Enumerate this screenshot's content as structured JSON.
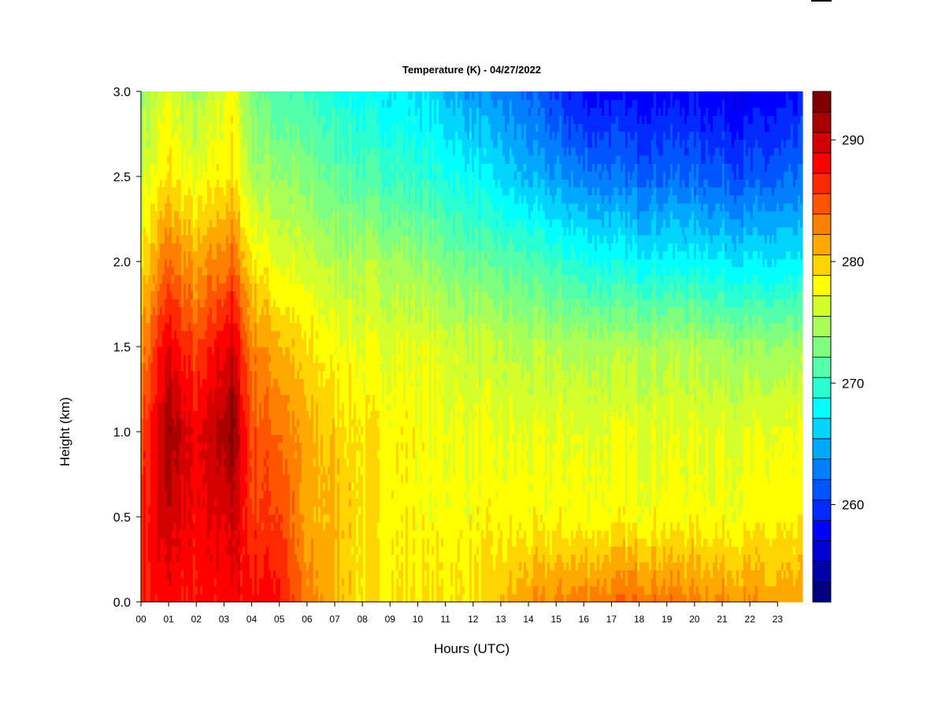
{
  "chart_data": {
    "type": "heatmap",
    "title": "Temperature (K) - 04/27/2022",
    "xlabel": "Hours (UTC)",
    "ylabel": "Height (km)",
    "x_ticks": [
      "00",
      "01",
      "02",
      "03",
      "04",
      "05",
      "06",
      "07",
      "08",
      "09",
      "10",
      "11",
      "12",
      "13",
      "14",
      "15",
      "16",
      "17",
      "18",
      "19",
      "20",
      "21",
      "22",
      "23"
    ],
    "y_ticks": [
      "0.0",
      "0.5",
      "1.0",
      "1.5",
      "2.0",
      "2.5",
      "3.0"
    ],
    "xlim": [
      0,
      23.9
    ],
    "ylim": [
      0,
      3.0
    ],
    "colorbar": {
      "range": [
        252,
        294
      ],
      "ticks": [
        "260",
        "270",
        "280",
        "290"
      ],
      "levels": [
        "#00007f",
        "#0000a9",
        "#0000d4",
        "#0000ff",
        "#002aff",
        "#0055ff",
        "#007fff",
        "#00a9ff",
        "#00d4ff",
        "#00ffff",
        "#2affd4",
        "#55ffa9",
        "#7fff7f",
        "#a9ff55",
        "#d4ff2a",
        "#ffff00",
        "#ffd400",
        "#ffa900",
        "#ff7f00",
        "#ff5500",
        "#ff2a00",
        "#ff0000",
        "#d40000",
        "#a90000",
        "#7f0000"
      ]
    },
    "series": [
      {
        "x_hours": 0,
        "temperature_K": [
          287,
          287,
          285,
          282,
          279,
          276,
          274
        ]
      },
      {
        "x_hours": 1,
        "temperature_K": [
          288,
          290,
          292,
          289,
          284,
          279,
          277
        ]
      },
      {
        "x_hours": 2,
        "temperature_K": [
          287,
          288,
          288,
          285,
          281,
          277,
          274
        ]
      },
      {
        "x_hours": 3.3,
        "temperature_K": [
          288,
          290,
          293,
          290,
          284,
          279,
          278
        ]
      },
      {
        "x_hours": 4,
        "temperature_K": [
          288,
          286,
          285,
          283,
          279,
          275,
          273
        ]
      },
      {
        "x_hours": 5,
        "temperature_K": [
          288,
          286,
          284,
          281,
          277,
          274,
          271
        ]
      },
      {
        "x_hours": 6,
        "temperature_K": [
          283,
          281,
          281,
          279,
          276,
          273,
          270
        ]
      },
      {
        "x_hours": 7,
        "temperature_K": [
          281,
          281,
          280,
          278,
          275,
          272,
          269
        ]
      },
      {
        "x_hours": 8,
        "temperature_K": [
          279,
          279,
          279,
          277,
          275,
          271,
          268
        ]
      },
      {
        "x_hours": 10,
        "temperature_K": [
          279,
          278,
          278,
          277,
          274,
          270,
          267
        ]
      },
      {
        "x_hours": 12,
        "temperature_K": [
          279,
          278,
          277,
          276,
          272,
          268,
          264
        ]
      },
      {
        "x_hours": 14,
        "temperature_K": [
          282,
          278,
          277,
          275,
          271,
          265,
          262
        ]
      },
      {
        "x_hours": 16,
        "temperature_K": [
          283,
          278,
          277,
          275,
          269,
          263,
          258
        ]
      },
      {
        "x_hours": 18,
        "temperature_K": [
          284,
          278,
          277,
          275,
          268,
          262,
          258
        ]
      },
      {
        "x_hours": 20,
        "temperature_K": [
          283,
          278,
          277,
          275,
          268,
          262,
          258
        ]
      },
      {
        "x_hours": 22,
        "temperature_K": [
          282,
          278,
          277,
          274,
          267,
          261,
          257
        ]
      },
      {
        "x_hours": 23.9,
        "temperature_K": [
          281,
          278,
          277,
          274,
          267,
          262,
          258
        ]
      }
    ],
    "height_levels_km": [
      0.0,
      0.5,
      1.0,
      1.5,
      2.0,
      2.5,
      3.0
    ],
    "grid": false,
    "legend": "colorbar right"
  }
}
